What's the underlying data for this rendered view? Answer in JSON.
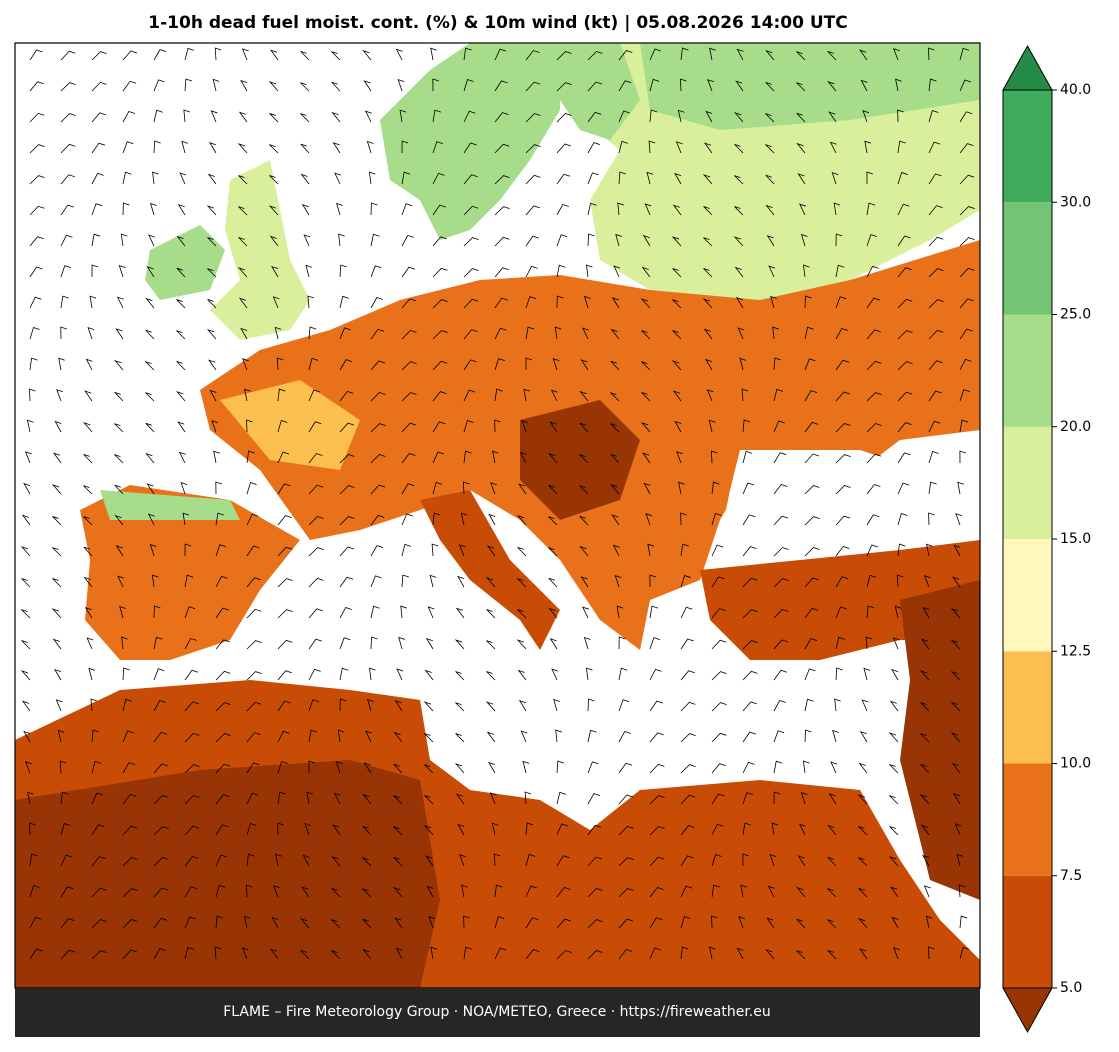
{
  "title": "1-10h dead fuel moist. cont. (%) & 10m wind (kt)  |  05.08.2026 14:00 UTC",
  "footer": "FLAME – Fire Meteorology Group · NOA/METEO, Greece · https://fireweather.eu",
  "colorbar": {
    "ticks": [
      {
        "value": 5,
        "label": "5.0"
      },
      7.5,
      {
        "value": 10,
        "label": "10.0"
      },
      12.5,
      {
        "value": 15,
        "label": "15.0"
      },
      {
        "value": 20,
        "label": "20.0"
      },
      {
        "value": 25,
        "label": "25.0"
      },
      {
        "value": 30,
        "label": "30.0"
      },
      {
        "value": 40,
        "label": "40.0"
      }
    ],
    "colors": [
      "#c84b06",
      "#e8711a",
      "#fdbf4f",
      "#fff7bc",
      "#d9ef9b",
      "#a6dc8a",
      "#74c476",
      "#41ab5d"
    ],
    "under_color": "#993404",
    "over_color": "#238b45"
  }
}
